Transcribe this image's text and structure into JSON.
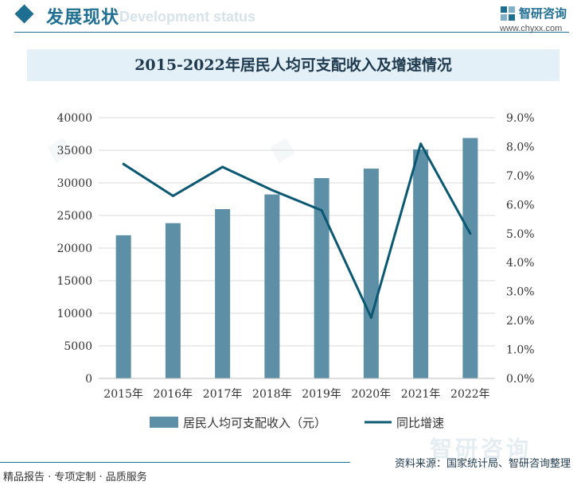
{
  "header": {
    "section_title": "发展现状",
    "section_subtitle": "Development status",
    "brand_name": "智研咨询",
    "brand_url": "www.chyxx.com"
  },
  "chart_data": {
    "type": "bar+line",
    "title": "2015-2022年居民人均可支配收入及增速情况",
    "categories": [
      "2015年",
      "2016年",
      "2017年",
      "2018年",
      "2019年",
      "2020年",
      "2021年",
      "2022年"
    ],
    "bar_series": {
      "name": "居民人均可支配收入（元）",
      "values": [
        21966,
        23821,
        25974,
        28228,
        30733,
        32189,
        35128,
        36883
      ]
    },
    "line_series": {
      "name": "同比增速",
      "values": [
        7.4,
        6.3,
        7.3,
        6.5,
        5.8,
        2.1,
        8.1,
        5.0
      ]
    },
    "y_left": {
      "min": 0,
      "max": 40000,
      "ticks": [
        "0",
        "5000",
        "10000",
        "15000",
        "20000",
        "25000",
        "30000",
        "35000",
        "40000"
      ]
    },
    "y_right": {
      "min": 0,
      "max": 9,
      "ticks": [
        "0.0%",
        "1.0%",
        "2.0%",
        "3.0%",
        "4.0%",
        "5.0%",
        "6.0%",
        "7.0%",
        "8.0%",
        "9.0%"
      ]
    },
    "grid": true,
    "legend_position": "bottom",
    "colors": {
      "bar": "#5d8fa6",
      "line": "#0b5873",
      "grid": "#d9d9d9"
    }
  },
  "footer": {
    "left_text": "精品报告 · 专项定制 · 品质服务",
    "source_text": "资料来源：国家统计局、智研咨询整理",
    "watermark_brand": "智研咨询"
  }
}
